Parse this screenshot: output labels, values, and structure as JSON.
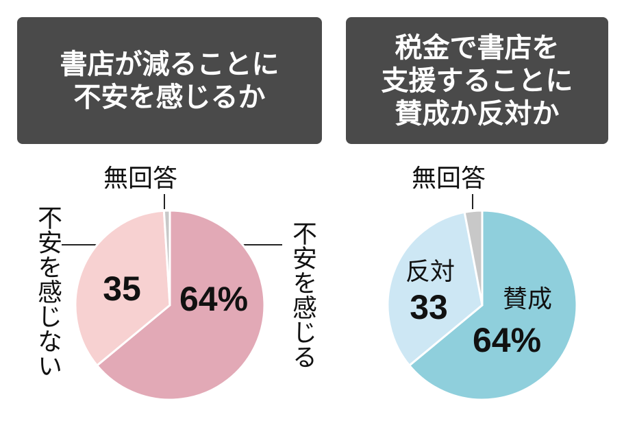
{
  "chart_data": [
    {
      "type": "pie",
      "title": "書店が減ることに\n不安を感じるか",
      "categories": [
        "不安を感じる",
        "不安を感じない",
        "無回答"
      ],
      "values": [
        64,
        35,
        1
      ],
      "value_labels": [
        "64%",
        "35",
        null
      ],
      "colors": [
        "#e2a9b6",
        "#f7d1d1",
        "#c8c8c8"
      ]
    },
    {
      "type": "pie",
      "title": "税金で書店を\n支援することに\n賛成か反対か",
      "categories": [
        "賛成",
        "反対",
        "無回答"
      ],
      "values": [
        64,
        33,
        3
      ],
      "value_labels": [
        "64%",
        "33",
        null
      ],
      "colors": [
        "#8fcfdc",
        "#cde7f4",
        "#c8c8c8"
      ]
    }
  ]
}
